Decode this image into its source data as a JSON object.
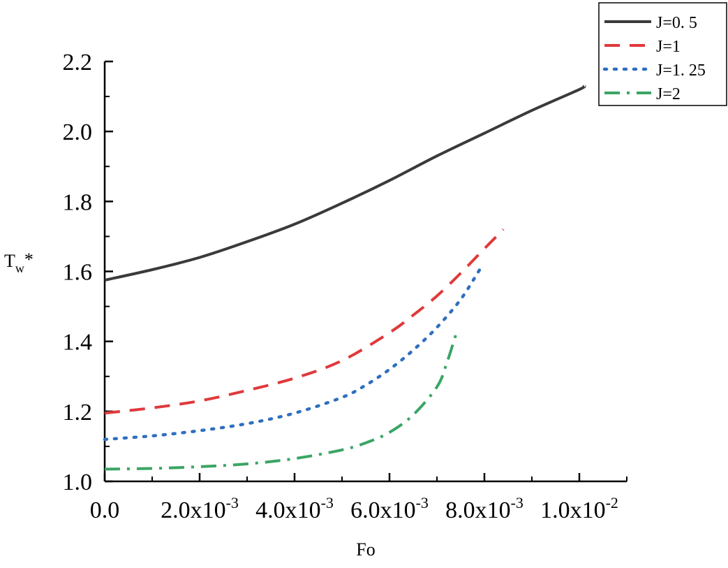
{
  "chart_data": {
    "type": "line",
    "title": "",
    "xlabel": "Fo",
    "ylabel": "Tw*",
    "ylabel_main": "T",
    "ylabel_sub": "w",
    "ylabel_suffix": "*",
    "xlim": [
      0,
      0.011
    ],
    "ylim": [
      1.0,
      2.2
    ],
    "x_ticks": [
      {
        "value": 0.0,
        "mantissa": "0.0",
        "exponent": ""
      },
      {
        "value": 0.002,
        "mantissa": "2.0x10",
        "exponent": "-3"
      },
      {
        "value": 0.004,
        "mantissa": "4.0x10",
        "exponent": "-3"
      },
      {
        "value": 0.006,
        "mantissa": "6.0x10",
        "exponent": "-3"
      },
      {
        "value": 0.008,
        "mantissa": "8.0x10",
        "exponent": "-3"
      },
      {
        "value": 0.01,
        "mantissa": "1.0x10",
        "exponent": "-2"
      }
    ],
    "y_ticks": [
      {
        "value": 1.0,
        "label": "1.0"
      },
      {
        "value": 1.2,
        "label": "1.2"
      },
      {
        "value": 1.4,
        "label": "1.4"
      },
      {
        "value": 1.6,
        "label": "1.6"
      },
      {
        "value": 1.8,
        "label": "1.8"
      },
      {
        "value": 2.0,
        "label": "2.0"
      },
      {
        "value": 2.2,
        "label": "2.2"
      }
    ],
    "grid": false,
    "legend_position": "top-right",
    "series": [
      {
        "name": "J=0. 5",
        "color": "#3a3a3a",
        "dash": "solid",
        "x": [
          0,
          0.001,
          0.002,
          0.003,
          0.004,
          0.005,
          0.006,
          0.007,
          0.008,
          0.009,
          0.01,
          0.0101
        ],
        "y": [
          1.575,
          1.605,
          1.64,
          1.685,
          1.735,
          1.795,
          1.86,
          1.93,
          1.995,
          2.06,
          2.12,
          2.13
        ]
      },
      {
        "name": "J=1",
        "color": "#e0393b",
        "dash": "dashed",
        "x": [
          0,
          0.001,
          0.002,
          0.003,
          0.004,
          0.005,
          0.006,
          0.0065,
          0.007,
          0.0075,
          0.008,
          0.0084
        ],
        "y": [
          1.195,
          1.21,
          1.23,
          1.26,
          1.295,
          1.345,
          1.425,
          1.475,
          1.53,
          1.595,
          1.665,
          1.72
        ]
      },
      {
        "name": "J=1. 25",
        "color": "#2f6fbf",
        "dash": "dotted",
        "x": [
          0,
          0.001,
          0.002,
          0.003,
          0.004,
          0.005,
          0.0055,
          0.006,
          0.0065,
          0.007,
          0.0075,
          0.0079
        ],
        "y": [
          1.12,
          1.13,
          1.145,
          1.165,
          1.195,
          1.24,
          1.275,
          1.32,
          1.375,
          1.44,
          1.52,
          1.605
        ]
      },
      {
        "name": "J=2",
        "color": "#3aa564",
        "dash": "dashdot",
        "x": [
          0,
          0.001,
          0.002,
          0.003,
          0.004,
          0.005,
          0.0055,
          0.006,
          0.0065,
          0.007,
          0.0072,
          0.0074
        ],
        "y": [
          1.035,
          1.037,
          1.042,
          1.05,
          1.065,
          1.09,
          1.11,
          1.14,
          1.19,
          1.27,
          1.335,
          1.42
        ]
      }
    ]
  }
}
